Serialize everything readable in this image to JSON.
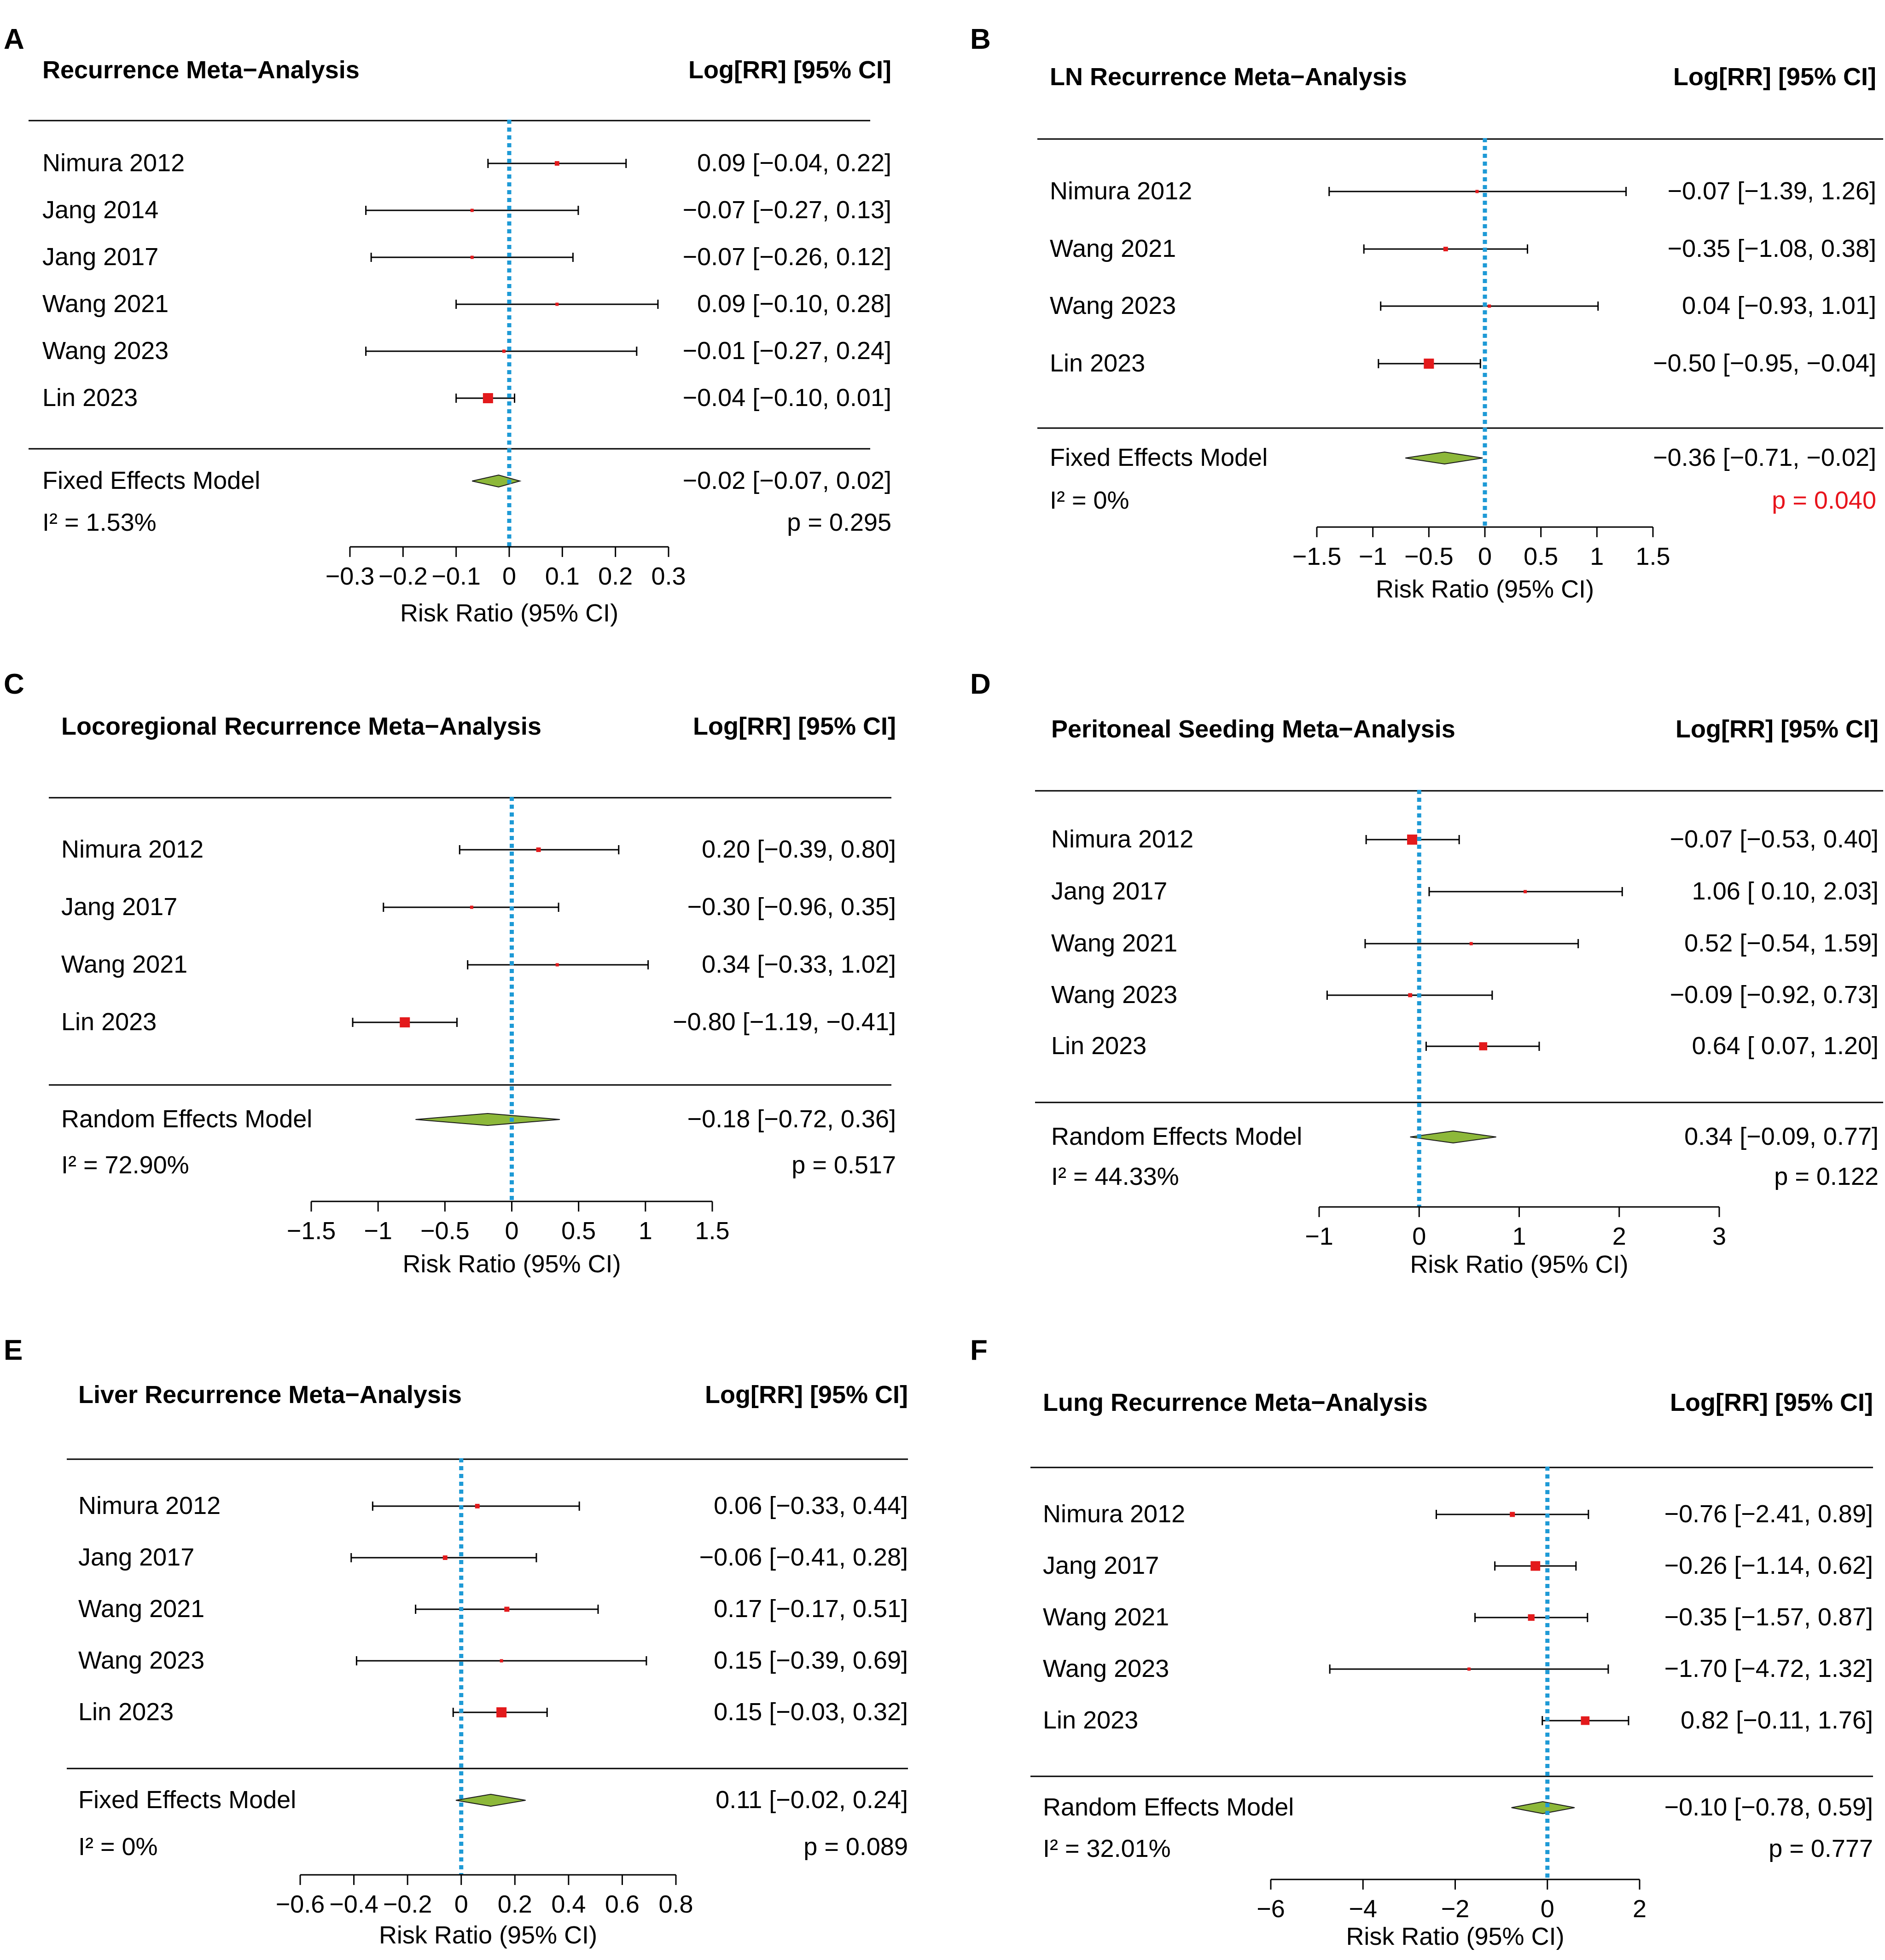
{
  "chart_data": [
    {
      "type": "forest",
      "panel": "A",
      "title": "Recurrence Meta−Analysis",
      "estimate_header": "Log[RR] [95% CI]",
      "xlabel": "Risk Ratio (95% CI)",
      "xlim": [
        -0.3,
        0.3
      ],
      "ticks": [
        -0.3,
        -0.2,
        -0.1,
        0,
        0.1,
        0.2,
        0.3
      ],
      "tick_labels": [
        "−0.3",
        "−0.2",
        "−0.1",
        "0",
        "0.1",
        "0.2",
        "0.3"
      ],
      "studies": [
        {
          "name": "Nimura 2012",
          "est": 0.09,
          "lo": -0.04,
          "hi": 0.22,
          "w": 0.45,
          "label": "0.09 [−0.04, 0.22]"
        },
        {
          "name": "Jang 2014",
          "est": -0.07,
          "lo": -0.27,
          "hi": 0.13,
          "w": 0.3,
          "label": "−0.07 [−0.27, 0.13]"
        },
        {
          "name": "Jang 2017",
          "est": -0.07,
          "lo": -0.26,
          "hi": 0.12,
          "w": 0.3,
          "label": "−0.07 [−0.26, 0.12]"
        },
        {
          "name": "Wang 2021",
          "est": 0.09,
          "lo": -0.1,
          "hi": 0.28,
          "w": 0.3,
          "label": "0.09 [−0.10, 0.28]"
        },
        {
          "name": "Wang 2023",
          "est": -0.01,
          "lo": -0.27,
          "hi": 0.24,
          "w": 0.25,
          "label": "−0.01 [−0.27, 0.24]"
        },
        {
          "name": "Lin 2023",
          "est": -0.04,
          "lo": -0.1,
          "hi": 0.01,
          "w": 1.0,
          "label": "−0.04 [−0.10, 0.01]"
        }
      ],
      "summary": {
        "model": "Fixed Effects Model",
        "est": -0.02,
        "lo": -0.07,
        "hi": 0.02,
        "label": "−0.02 [−0.07, 0.02]"
      },
      "heterogeneity": "I² = 1.53%",
      "p_value": "p = 0.295",
      "p_color": "#000000"
    },
    {
      "type": "forest",
      "panel": "B",
      "title": "LN Recurrence Meta−Analysis",
      "estimate_header": "Log[RR] [95% CI]",
      "xlabel": "Risk Ratio (95% CI)",
      "xlim": [
        -1.5,
        1.5
      ],
      "ticks": [
        -1.5,
        -1,
        -0.5,
        0,
        0.5,
        1,
        1.5
      ],
      "tick_labels": [
        "−1.5",
        "−1",
        "−0.5",
        "0",
        "0.5",
        "1",
        "1.5"
      ],
      "studies": [
        {
          "name": "Nimura 2012",
          "est": -0.07,
          "lo": -1.39,
          "hi": 1.26,
          "w": 0.15,
          "label": "−0.07 [−1.39,  1.26]"
        },
        {
          "name": "Wang 2021",
          "est": -0.35,
          "lo": -1.08,
          "hi": 0.38,
          "w": 0.45,
          "label": "−0.35 [−1.08,  0.38]"
        },
        {
          "name": "Wang 2023",
          "est": 0.04,
          "lo": -0.93,
          "hi": 1.01,
          "w": 0.3,
          "label": "0.04 [−0.93,  1.01]"
        },
        {
          "name": "Lin 2023",
          "est": -0.5,
          "lo": -0.95,
          "hi": -0.04,
          "w": 1.0,
          "label": "−0.50 [−0.95, −0.04]"
        }
      ],
      "summary": {
        "model": "Fixed Effects Model",
        "est": -0.36,
        "lo": -0.71,
        "hi": -0.02,
        "label": "−0.36 [−0.71, −0.02]"
      },
      "heterogeneity": "I² = 0%",
      "p_value": "p = 0.040",
      "p_color": "#e8141c"
    },
    {
      "type": "forest",
      "panel": "C",
      "title": "Locoregional Recurrence Meta−Analysis",
      "estimate_header": "Log[RR] [95% CI]",
      "xlabel": "Risk Ratio (95% CI)",
      "xlim": [
        -1.5,
        1.5
      ],
      "ticks": [
        -1.5,
        -1,
        -0.5,
        0,
        0.5,
        1,
        1.5
      ],
      "tick_labels": [
        "−1.5",
        "−1",
        "−0.5",
        "0",
        "0.5",
        "1",
        "1.5"
      ],
      "studies": [
        {
          "name": "Nimura 2012",
          "est": 0.2,
          "lo": -0.39,
          "hi": 0.8,
          "w": 0.45,
          "label": "0.20 [−0.39,  0.80]"
        },
        {
          "name": "Jang 2017",
          "est": -0.3,
          "lo": -0.96,
          "hi": 0.35,
          "w": 0.3,
          "label": "−0.30 [−0.96,  0.35]"
        },
        {
          "name": "Wang 2021",
          "est": 0.34,
          "lo": -0.33,
          "hi": 1.02,
          "w": 0.25,
          "label": "0.34 [−0.33,  1.02]"
        },
        {
          "name": "Lin 2023",
          "est": -0.8,
          "lo": -1.19,
          "hi": -0.41,
          "w": 1.0,
          "label": "−0.80 [−1.19, −0.41]"
        }
      ],
      "summary": {
        "model": "Random Effects Model",
        "est": -0.18,
        "lo": -0.72,
        "hi": 0.36,
        "label": "−0.18 [−0.72,  0.36]"
      },
      "heterogeneity": "I² = 72.90%",
      "p_value": "p = 0.517",
      "p_color": "#000000"
    },
    {
      "type": "forest",
      "panel": "D",
      "title": "Peritoneal Seeding Meta−Analysis",
      "estimate_header": "Log[RR] [95% CI]",
      "xlabel": "Risk Ratio (95% CI)",
      "xlim": [
        -1,
        3
      ],
      "ticks": [
        -1,
        0,
        1,
        2,
        3
      ],
      "tick_labels": [
        "−1",
        "0",
        "1",
        "2",
        "3"
      ],
      "studies": [
        {
          "name": "Nimura 2012",
          "est": -0.07,
          "lo": -0.53,
          "hi": 0.4,
          "w": 1.0,
          "label": "−0.07 [−0.53, 0.40]"
        },
        {
          "name": "Jang 2017",
          "est": 1.06,
          "lo": 0.1,
          "hi": 2.03,
          "w": 0.3,
          "label": "1.06 [ 0.10, 2.03]"
        },
        {
          "name": "Wang 2021",
          "est": 0.52,
          "lo": -0.54,
          "hi": 1.59,
          "w": 0.25,
          "label": "0.52 [−0.54, 1.59]"
        },
        {
          "name": "Wang 2023",
          "est": -0.09,
          "lo": -0.92,
          "hi": 0.73,
          "w": 0.4,
          "label": "−0.09 [−0.92, 0.73]"
        },
        {
          "name": "Lin 2023",
          "est": 0.64,
          "lo": 0.07,
          "hi": 1.2,
          "w": 0.8,
          "label": "0.64 [ 0.07, 1.20]"
        }
      ],
      "summary": {
        "model": "Random Effects Model",
        "est": 0.34,
        "lo": -0.09,
        "hi": 0.77,
        "label": "0.34 [−0.09, 0.77]"
      },
      "heterogeneity": "I² = 44.33%",
      "p_value": "p = 0.122",
      "p_color": "#000000"
    },
    {
      "type": "forest",
      "panel": "E",
      "title": "Liver Recurrence Meta−Analysis",
      "estimate_header": "Log[RR] [95% CI]",
      "xlabel": "Risk Ratio (95% CI)",
      "xlim": [
        -0.6,
        0.8
      ],
      "ticks": [
        -0.6,
        -0.4,
        -0.2,
        0,
        0.2,
        0.4,
        0.6,
        0.8
      ],
      "tick_labels": [
        "−0.6",
        "−0.4",
        "−0.2",
        "0",
        "0.2",
        "0.4",
        "0.6",
        "0.8"
      ],
      "studies": [
        {
          "name": "Nimura 2012",
          "est": 0.06,
          "lo": -0.33,
          "hi": 0.44,
          "w": 0.45,
          "label": "0.06 [−0.33, 0.44]"
        },
        {
          "name": "Jang 2017",
          "est": -0.06,
          "lo": -0.41,
          "hi": 0.28,
          "w": 0.45,
          "label": "−0.06 [−0.41, 0.28]"
        },
        {
          "name": "Wang 2021",
          "est": 0.17,
          "lo": -0.17,
          "hi": 0.51,
          "w": 0.5,
          "label": "0.17 [−0.17, 0.51]"
        },
        {
          "name": "Wang 2023",
          "est": 0.15,
          "lo": -0.39,
          "hi": 0.69,
          "w": 0.3,
          "label": "0.15 [−0.39, 0.69]"
        },
        {
          "name": "Lin 2023",
          "est": 0.15,
          "lo": -0.03,
          "hi": 0.32,
          "w": 1.0,
          "label": "0.15 [−0.03, 0.32]"
        }
      ],
      "summary": {
        "model": "Fixed Effects Model",
        "est": 0.11,
        "lo": -0.02,
        "hi": 0.24,
        "label": "0.11 [−0.02, 0.24]"
      },
      "heterogeneity": "I² = 0%",
      "p_value": "p = 0.089",
      "p_color": "#000000"
    },
    {
      "type": "forest",
      "panel": "F",
      "title": "Lung Recurrence Meta−Analysis",
      "estimate_header": "Log[RR] [95% CI]",
      "xlabel": "Risk Ratio (95% CI)",
      "xlim": [
        -6,
        2
      ],
      "ticks": [
        -6,
        -4,
        -2,
        0,
        2
      ],
      "tick_labels": [
        "−6",
        "−4",
        "−2",
        "0",
        "2"
      ],
      "studies": [
        {
          "name": "Nimura 2012",
          "est": -0.76,
          "lo": -2.41,
          "hi": 0.89,
          "w": 0.5,
          "label": "−0.76 [−2.41, 0.89]"
        },
        {
          "name": "Jang 2017",
          "est": -0.26,
          "lo": -1.14,
          "hi": 0.62,
          "w": 0.95,
          "label": "−0.26 [−1.14, 0.62]"
        },
        {
          "name": "Wang 2021",
          "est": -0.35,
          "lo": -1.57,
          "hi": 0.87,
          "w": 0.65,
          "label": "−0.35 [−1.57, 0.87]"
        },
        {
          "name": "Wang 2023",
          "est": -1.7,
          "lo": -4.72,
          "hi": 1.32,
          "w": 0.25,
          "label": "−1.70 [−4.72, 1.32]"
        },
        {
          "name": "Lin 2023",
          "est": 0.82,
          "lo": -0.11,
          "hi": 1.76,
          "w": 0.85,
          "label": "0.82 [−0.11, 1.76]"
        }
      ],
      "summary": {
        "model": "Random Effects Model",
        "est": -0.1,
        "lo": -0.78,
        "hi": 0.59,
        "label": "−0.10 [−0.78, 0.59]"
      },
      "heterogeneity": "I² = 32.01%",
      "p_value": "p = 0.777",
      "p_color": "#000000"
    }
  ],
  "colors": {
    "study_marker": "#e31a1c",
    "summary_diamond": "#8db83a",
    "diamond_stroke": "#1a1a1a",
    "reference_line": "#1e9ad6",
    "ink": "#000000"
  }
}
